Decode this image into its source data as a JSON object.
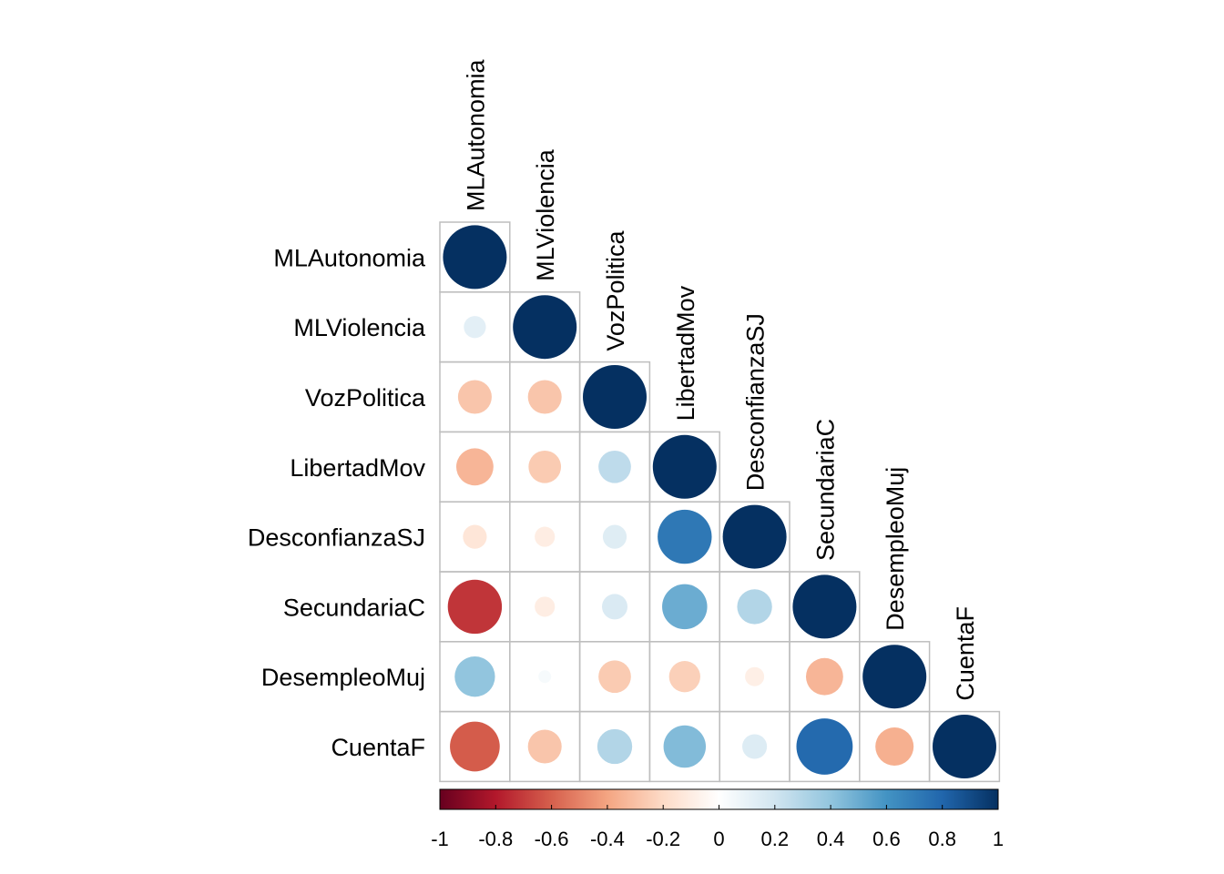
{
  "chart_data": {
    "type": "heatmap",
    "variables": [
      "MLAutonomia",
      "MLViolencia",
      "VozPolitica",
      "LibertadMov",
      "DesconfianzaSJ",
      "SecundariaC",
      "DesempleoMuj",
      "CuentaF"
    ],
    "layout": "lower-triangle",
    "method": "circle",
    "matrix": [
      [
        1
      ],
      [
        0.12,
        1
      ],
      [
        -0.28,
        -0.28,
        1
      ],
      [
        -0.34,
        -0.26,
        0.26,
        1
      ],
      [
        -0.14,
        -0.1,
        0.14,
        0.72,
        1
      ],
      [
        -0.72,
        -0.1,
        0.16,
        0.5,
        0.3,
        1
      ],
      [
        0.4,
        0.04,
        -0.26,
        -0.24,
        -0.09,
        -0.34,
        1
      ],
      [
        -0.61,
        -0.28,
        0.3,
        0.44,
        0.15,
        0.78,
        -0.36,
        1
      ]
    ],
    "colorbar": {
      "range": [
        -1,
        1
      ],
      "ticks": [
        "-1",
        "-0.8",
        "-0.6",
        "-0.4",
        "-0.2",
        "0",
        "0.2",
        "0.4",
        "0.6",
        "0.8",
        "1"
      ]
    },
    "colors": {
      "negative_end": "#67001F",
      "mid": "#FFFFFF",
      "positive_end": "#053061",
      "grid": "#BEBEBE"
    }
  }
}
